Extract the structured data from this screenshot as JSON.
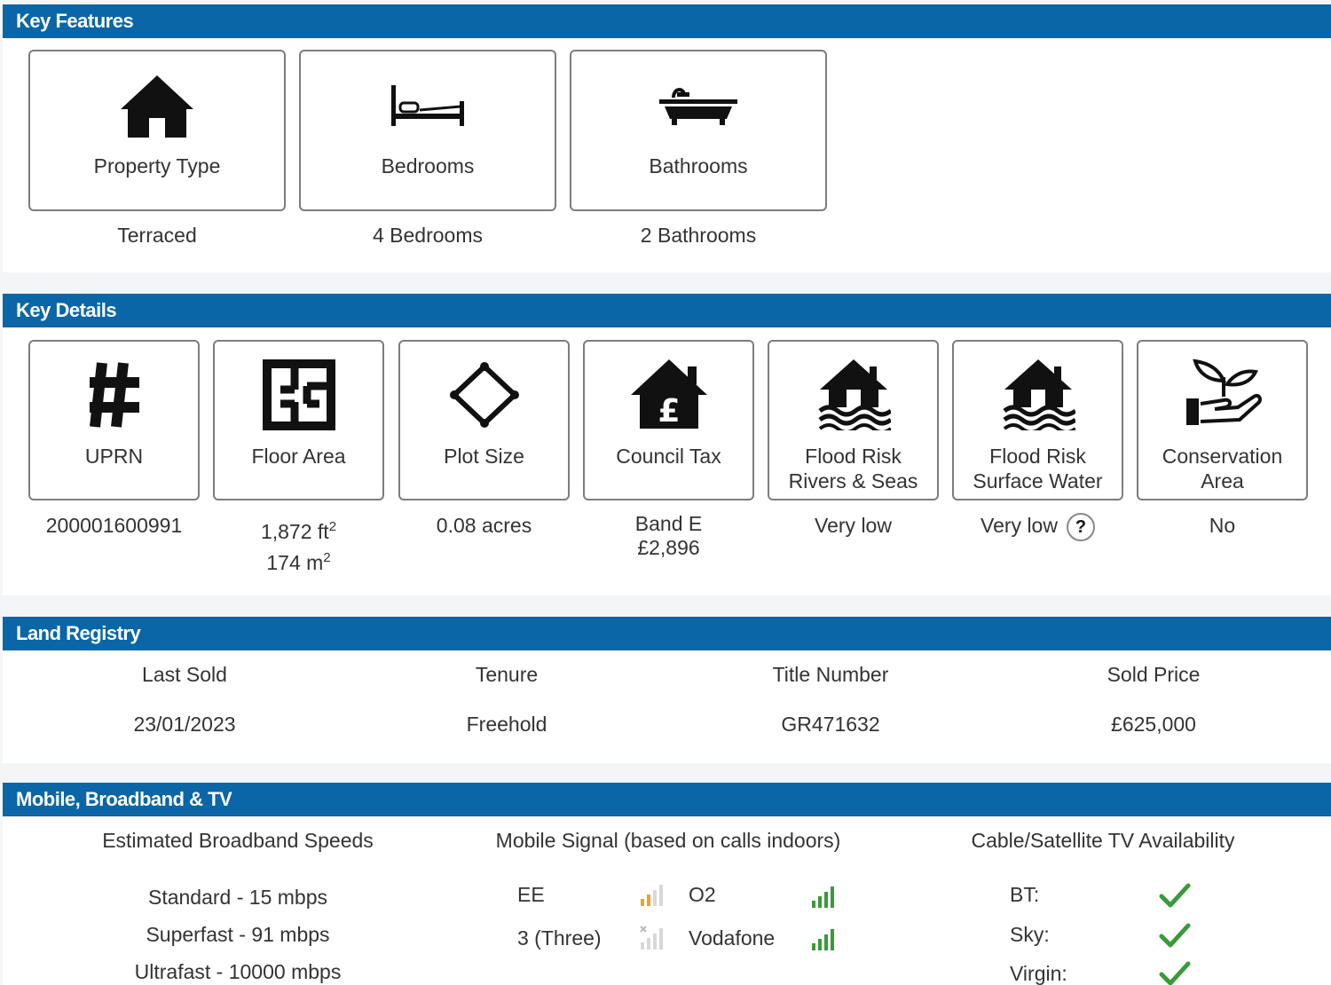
{
  "key_features": {
    "title": "Key Features",
    "cards": [
      {
        "label": "Property Type",
        "value": "Terraced",
        "icon": "house-icon"
      },
      {
        "label": "Bedrooms",
        "value": "4 Bedrooms",
        "icon": "bed-icon"
      },
      {
        "label": "Bathrooms",
        "value": "2 Bathrooms",
        "icon": "bathtub-icon"
      }
    ]
  },
  "key_details": {
    "title": "Key Details",
    "cards": [
      {
        "label": "UPRN",
        "icon": "hash-icon",
        "value": "200001600991"
      },
      {
        "label": "Floor Area",
        "icon": "floorplan-icon",
        "value_line1": "1,872 ft",
        "value_line1_sup": "2",
        "value_line2": "174 m",
        "value_line2_sup": "2"
      },
      {
        "label": "Plot Size",
        "icon": "plot-diamond-icon",
        "value": "0.08 acres"
      },
      {
        "label": "Council Tax",
        "icon": "house-pound-icon",
        "value_line1": "Band E",
        "value_line2": "£2,896"
      },
      {
        "label_line1": "Flood Risk",
        "label_line2": "Rivers & Seas",
        "icon": "flood-house-icon",
        "value": "Very low"
      },
      {
        "label_line1": "Flood Risk",
        "label_line2": "Surface Water",
        "icon": "flood-house-icon",
        "value": "Very low",
        "help": "?"
      },
      {
        "label_line1": "Conservation",
        "label_line2": "Area",
        "icon": "plant-hand-icon",
        "value": "No"
      }
    ]
  },
  "land_registry": {
    "title": "Land Registry",
    "columns": [
      {
        "header": "Last Sold",
        "value": "23/01/2023"
      },
      {
        "header": "Tenure",
        "value": "Freehold"
      },
      {
        "header": "Title Number",
        "value": "GR471632"
      },
      {
        "header": "Sold Price",
        "value": "£625,000"
      }
    ]
  },
  "mobile": {
    "title": "Mobile, Broadband & TV",
    "broadband": {
      "header": "Estimated Broadband Speeds",
      "rows": [
        "Standard - 15 mbps",
        "Superfast - 91 mbps",
        "Ultrafast - 10000 mbps"
      ]
    },
    "signal": {
      "header": "Mobile Signal (based on calls indoors)",
      "operators": [
        {
          "name": "EE",
          "icon": "signal-medium-icon",
          "color": "#f0a020"
        },
        {
          "name": "O2",
          "icon": "signal-full-icon",
          "color": "#3a9a3a"
        },
        {
          "name": "3 (Three)",
          "icon": "signal-none-icon",
          "color": "#cfcfcf"
        },
        {
          "name": "Vodafone",
          "icon": "signal-full-icon",
          "color": "#3a9a3a"
        }
      ]
    },
    "tv": {
      "header": "Cable/Satellite TV Availability",
      "rows": [
        {
          "name": "BT:",
          "icon": "check-icon"
        },
        {
          "name": "Sky:",
          "icon": "check-icon"
        },
        {
          "name": "Virgin:",
          "icon": "check-icon"
        }
      ]
    }
  },
  "colors": {
    "header_bar": "#0a66a6",
    "check": "#3a9a3a"
  }
}
